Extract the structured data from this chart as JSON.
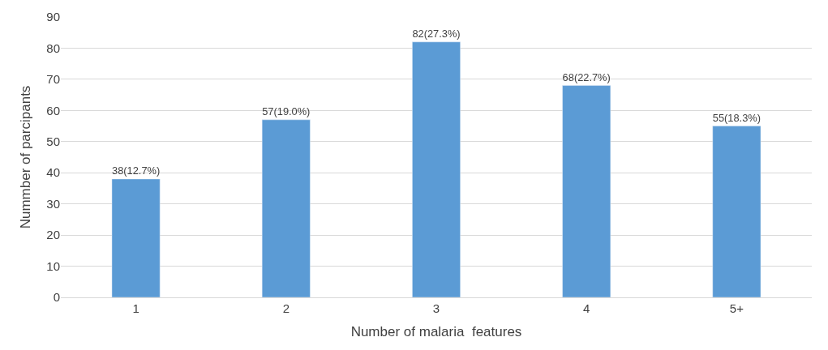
{
  "chart_data": {
    "type": "bar",
    "xlabel": "Number of malaria  features",
    "ylabel": "Nummber of parcipants",
    "categories": [
      "1",
      "2",
      "3",
      "4",
      "5+"
    ],
    "values": [
      38,
      57,
      82,
      68,
      55
    ],
    "value_labels": [
      "38(12.7%)",
      "57(19.0%)",
      "82(27.3%)",
      "68(22.7%)",
      "55(18.3%)"
    ],
    "color": "#5b9bd5",
    "ylim": [
      0,
      90
    ],
    "yticks": [
      0,
      10,
      20,
      30,
      40,
      50,
      60,
      70,
      80,
      90
    ],
    "grid": "y",
    "legend": false
  }
}
